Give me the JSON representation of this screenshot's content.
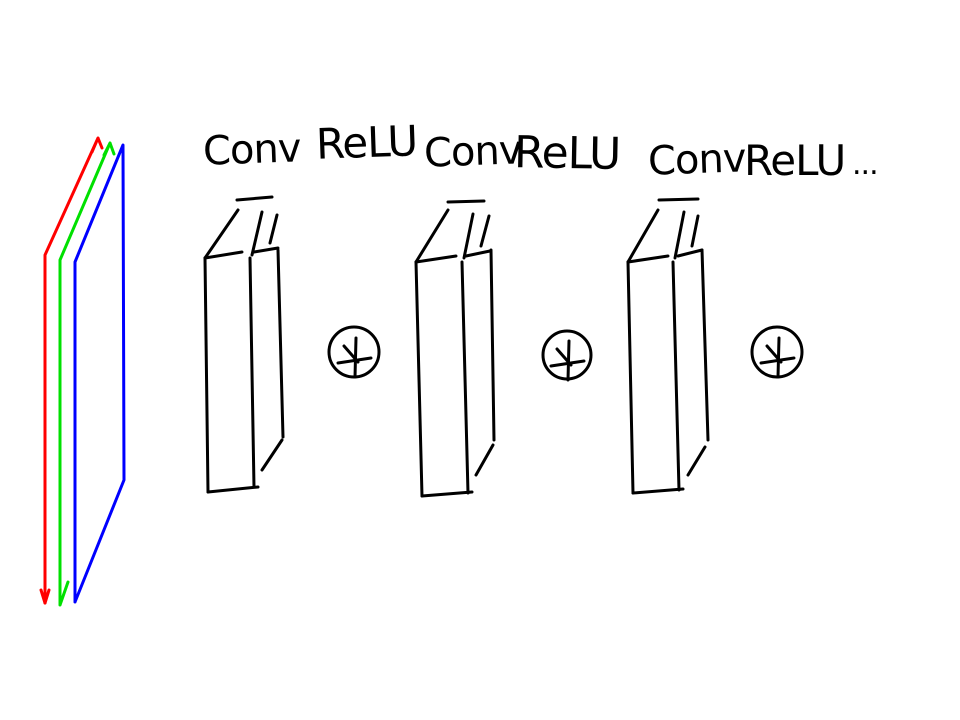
{
  "labels": [
    "Conv",
    "ReLU",
    "Conv",
    "ReLU",
    "Conv",
    "ReLU",
    "..."
  ],
  "channels": [
    {
      "name": "red-channel",
      "color": "#ff0000"
    },
    {
      "name": "green-channel",
      "color": "#00e000"
    },
    {
      "name": "blue-channel",
      "color": "#0000ff"
    }
  ],
  "line_color": "#000000"
}
